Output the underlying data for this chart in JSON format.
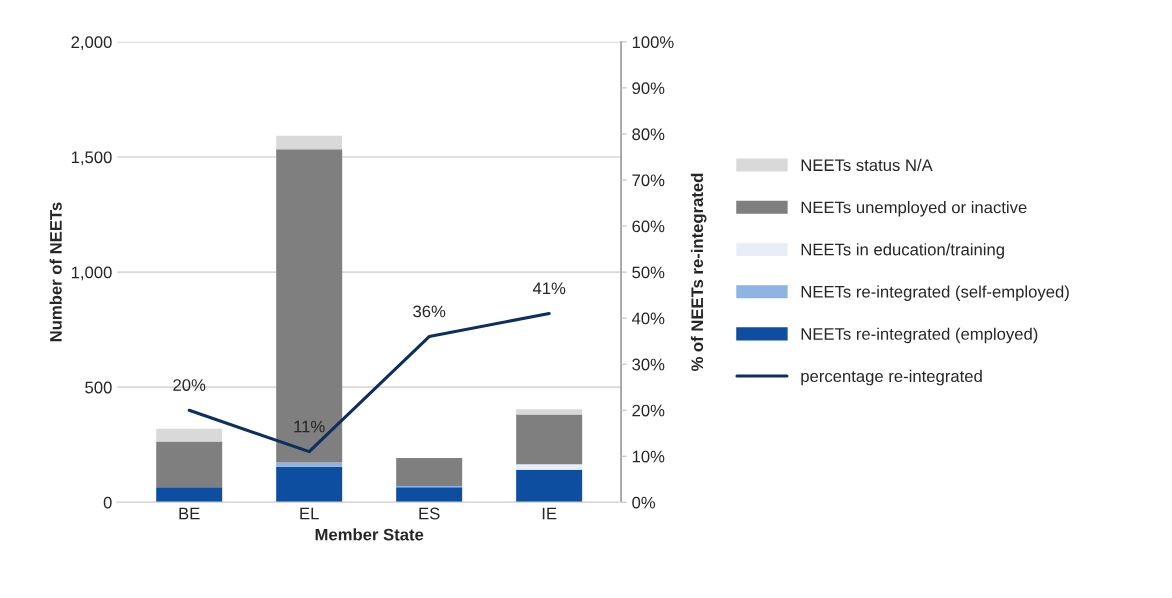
{
  "chart_data": {
    "type": "bar",
    "stacked": true,
    "xlabel": "Member State",
    "ylabel": "Number of NEETs",
    "y2label": "% of NEETs re-integrated",
    "categories": [
      "BE",
      "EL",
      "ES",
      "IE"
    ],
    "series": [
      {
        "name": "NEETs re-integrated (employed)",
        "color": "#0d4ea0",
        "values": [
          65,
          154,
          65,
          141
        ]
      },
      {
        "name": "NEETs re-integrated (self-employed)",
        "color": "#8eb4e3",
        "values": [
          0,
          19,
          6,
          0
        ]
      },
      {
        "name": "NEETs in education/training",
        "color": "#e8eef8",
        "values": [
          0,
          null,
          0,
          24
        ]
      },
      {
        "name": "NEETs unemployed or inactive",
        "color": "#7f7f7f",
        "values": [
          199,
          1361,
          121,
          216
        ]
      },
      {
        "name": "NEETs status N/A",
        "color": "#d9d9d9",
        "values": [
          56,
          58,
          0,
          23
        ]
      },
      {
        "name": "percentage re-integrated",
        "type": "line",
        "axis": "y2",
        "color": "#0e2e5e",
        "values": [
          20,
          11,
          36,
          41
        ],
        "value_labels": [
          "20%",
          "11%",
          "36%",
          "41%"
        ],
        "marker": "none"
      }
    ],
    "ylim": [
      0,
      2000
    ],
    "yticks": [
      0,
      {
        "value": 500,
        "label": "500"
      },
      {
        "value": 1000,
        "label": "1,000"
      },
      {
        "value": 1500,
        "label": "1,500"
      },
      {
        "value": 2000,
        "label": "2,000"
      }
    ],
    "y2lim": [
      0,
      100
    ],
    "y2ticks": [
      {
        "value": 0,
        "label": "0%"
      },
      {
        "value": 10,
        "label": "10%"
      },
      {
        "value": 20,
        "label": "20%"
      },
      {
        "value": 30,
        "label": "30%"
      },
      {
        "value": 40,
        "label": "40%"
      },
      {
        "value": 50,
        "label": "50%"
      },
      {
        "value": 60,
        "label": "60%"
      },
      {
        "value": 70,
        "label": "70%"
      },
      {
        "value": 80,
        "label": "80%"
      },
      {
        "value": 90,
        "label": "90%"
      },
      {
        "value": 100,
        "label": "100%"
      }
    ],
    "grid": "y",
    "legend": "right"
  }
}
